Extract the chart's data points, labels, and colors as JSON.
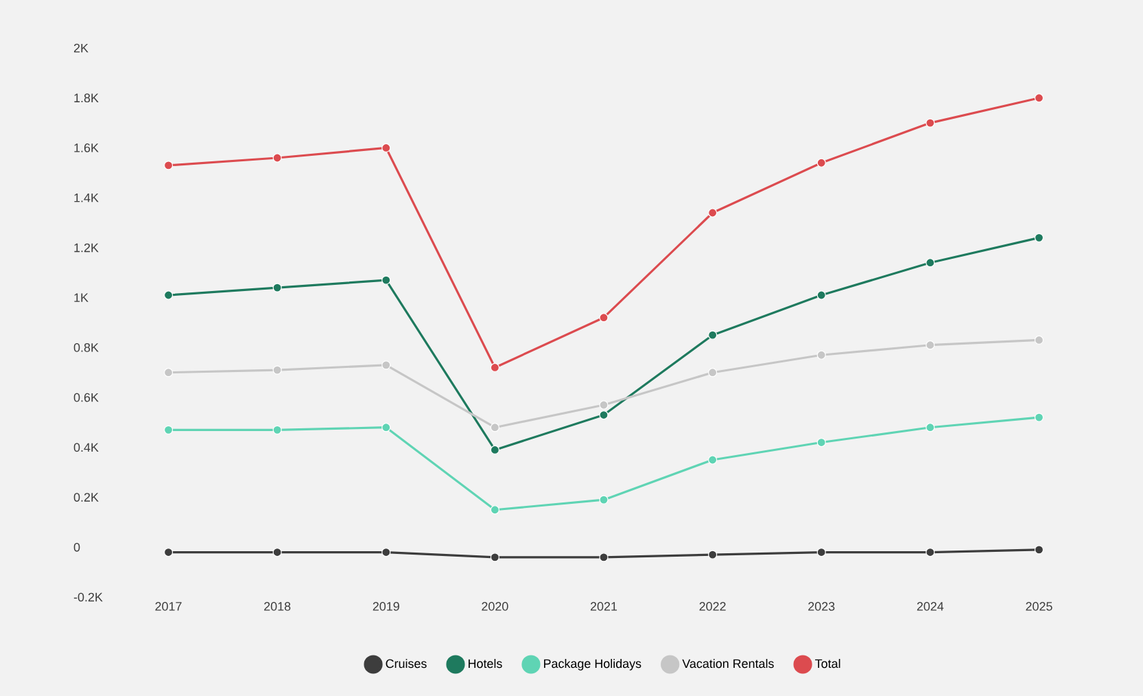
{
  "chart_data": {
    "type": "line",
    "categories": [
      "2017",
      "2018",
      "2019",
      "2020",
      "2021",
      "2022",
      "2023",
      "2024",
      "2025"
    ],
    "series": [
      {
        "name": "Cruises",
        "color": "#3d3d3d",
        "values": [
          -20,
          -20,
          -20,
          -40,
          -40,
          -30,
          -20,
          -20,
          -10
        ]
      },
      {
        "name": "Hotels",
        "color": "#1e7a5e",
        "values": [
          1010,
          1040,
          1070,
          390,
          530,
          850,
          1010,
          1140,
          1240
        ]
      },
      {
        "name": "Package Holidays",
        "color": "#5fd4b4",
        "values": [
          470,
          470,
          480,
          150,
          190,
          350,
          420,
          480,
          520
        ]
      },
      {
        "name": "Vacation Rentals",
        "color": "#c6c6c6",
        "values": [
          700,
          710,
          730,
          480,
          570,
          700,
          770,
          810,
          830
        ]
      },
      {
        "name": "Total",
        "color": "#dc4b4f",
        "values": [
          1530,
          1560,
          1600,
          720,
          920,
          1340,
          1540,
          1700,
          1800
        ]
      }
    ],
    "ylim": [
      -200,
      2000
    ],
    "yticks": [
      {
        "value": -200,
        "label": "-0.2K"
      },
      0,
      {
        "value": 200,
        "label": "0.2K"
      },
      {
        "value": 400,
        "label": "0.4K"
      },
      {
        "value": 600,
        "label": "0.6K"
      },
      {
        "value": 800,
        "label": "0.8K"
      },
      {
        "value": 1000,
        "label": "1K"
      },
      {
        "value": 1200,
        "label": "1.2K"
      },
      {
        "value": 1400,
        "label": "1.4K"
      },
      {
        "value": 1600,
        "label": "1.6K"
      },
      {
        "value": 1800,
        "label": "1.8K"
      },
      {
        "value": 2000,
        "label": "2K"
      }
    ],
    "grid": false,
    "legend": "bottom",
    "marker": "circle",
    "line_style": "solid"
  }
}
